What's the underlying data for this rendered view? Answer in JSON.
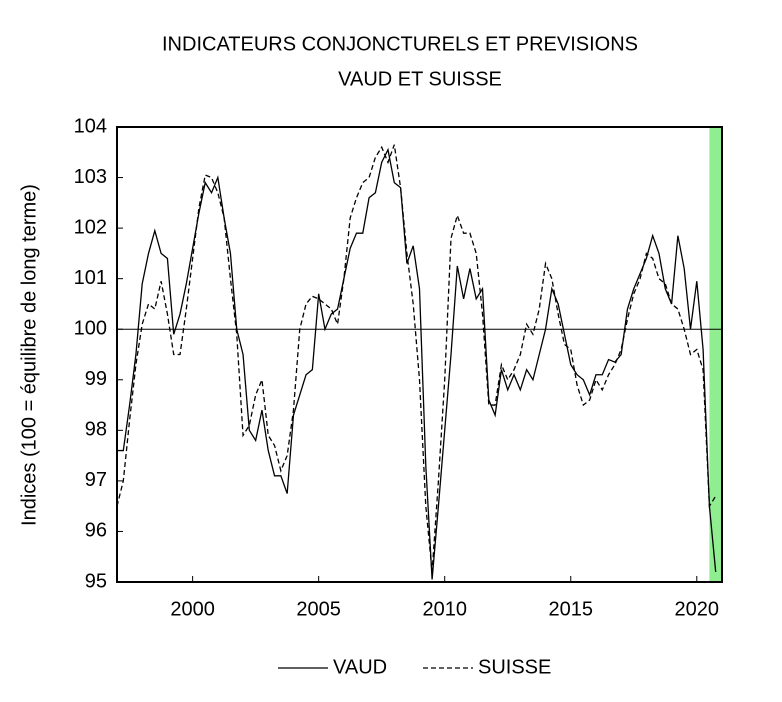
{
  "chart_data": {
    "type": "line",
    "title": "INDICATEURS CONJONCTURELS ET PREVISIONS",
    "subtitle": "VAUD ET SUISSE",
    "y_label": "Indices (100 = équilibre de long terme)",
    "x": [
      1997,
      1997.25,
      1997.5,
      1997.75,
      1998,
      1998.25,
      1998.5,
      1998.75,
      1999,
      1999.25,
      1999.5,
      1999.75,
      2000,
      2000.25,
      2000.5,
      2000.75,
      2001,
      2001.25,
      2001.5,
      2001.75,
      2002,
      2002.25,
      2002.5,
      2002.75,
      2003,
      2003.25,
      2003.5,
      2003.75,
      2004,
      2004.25,
      2004.5,
      2004.75,
      2005,
      2005.25,
      2005.5,
      2005.75,
      2006,
      2006.25,
      2006.5,
      2006.75,
      2007,
      2007.25,
      2007.5,
      2007.75,
      2008,
      2008.25,
      2008.5,
      2008.75,
      2009,
      2009.25,
      2009.5,
      2009.75,
      2010,
      2010.25,
      2010.5,
      2010.75,
      2011,
      2011.25,
      2011.5,
      2011.75,
      2012,
      2012.25,
      2012.5,
      2012.75,
      2013,
      2013.25,
      2013.5,
      2013.75,
      2014,
      2014.25,
      2014.5,
      2014.75,
      2015,
      2015.25,
      2015.5,
      2015.75,
      2016,
      2016.25,
      2016.5,
      2016.75,
      2017,
      2017.25,
      2017.5,
      2017.75,
      2018,
      2018.25,
      2018.5,
      2018.75,
      2019,
      2019.25,
      2019.5,
      2019.75,
      2020,
      2020.25,
      2020.5,
      2020.75
    ],
    "series": [
      {
        "name": "VAUD",
        "color": "#000000",
        "dash": "solid",
        "values": [
          97.6,
          97.6,
          98.5,
          99.5,
          100.9,
          101.5,
          101.95,
          101.5,
          101.4,
          99.9,
          100.3,
          100.9,
          101.6,
          102.3,
          102.9,
          102.7,
          103.0,
          102.2,
          101.5,
          100.0,
          99.5,
          98.0,
          97.8,
          98.4,
          97.6,
          97.1,
          97.1,
          96.75,
          98.3,
          98.7,
          99.1,
          99.2,
          100.7,
          100.0,
          100.3,
          100.4,
          101.0,
          101.6,
          101.9,
          101.9,
          102.6,
          102.7,
          103.3,
          103.55,
          102.9,
          102.8,
          101.3,
          101.65,
          100.8,
          97.3,
          95.05,
          96.5,
          98.0,
          99.5,
          101.25,
          100.6,
          101.2,
          100.6,
          100.8,
          98.6,
          98.3,
          99.2,
          98.8,
          99.1,
          98.8,
          99.2,
          99.0,
          99.5,
          100.0,
          100.8,
          100.5,
          99.9,
          99.3,
          99.1,
          99.0,
          98.7,
          99.1,
          99.1,
          99.4,
          99.35,
          99.5,
          100.4,
          100.8,
          101.1,
          101.4,
          101.85,
          101.5,
          100.8,
          100.5,
          101.85,
          101.2,
          100.0,
          100.95,
          99.6,
          96.5,
          95.2
        ]
      },
      {
        "name": "SUISSE",
        "color": "#000000",
        "dash": "dashed",
        "values": [
          96.5,
          97.0,
          98.2,
          99.3,
          100.1,
          100.5,
          100.4,
          100.95,
          100.3,
          99.5,
          99.5,
          100.4,
          101.4,
          102.4,
          103.05,
          103.0,
          102.7,
          102.2,
          101.0,
          99.9,
          97.9,
          98.1,
          98.7,
          99.0,
          97.9,
          97.7,
          97.2,
          97.5,
          98.4,
          100.0,
          100.5,
          100.65,
          100.6,
          100.5,
          100.4,
          100.1,
          101.0,
          102.2,
          102.6,
          102.9,
          103.0,
          103.4,
          103.6,
          103.3,
          103.65,
          102.8,
          101.5,
          100.5,
          99.0,
          96.5,
          95.2,
          97.0,
          99.0,
          101.8,
          102.25,
          101.9,
          101.9,
          101.5,
          100.3,
          98.5,
          98.5,
          99.3,
          99.0,
          99.2,
          99.5,
          100.1,
          99.9,
          100.4,
          101.3,
          101.0,
          100.3,
          99.7,
          99.6,
          98.9,
          98.5,
          98.6,
          99.0,
          98.8,
          99.1,
          99.3,
          99.6,
          100.2,
          100.7,
          101.0,
          101.5,
          101.4,
          101.0,
          100.9,
          100.5,
          100.4,
          100.0,
          99.5,
          99.6,
          99.2,
          96.5,
          96.7
        ]
      }
    ],
    "xlim": [
      1997,
      2021
    ],
    "xticks": [
      2000,
      2005,
      2010,
      2015,
      2020
    ],
    "ylim": [
      95,
      104
    ],
    "yticks": [
      95,
      96,
      97,
      98,
      99,
      100,
      101,
      102,
      103,
      104
    ],
    "reference_line": 100,
    "shade": [
      2020.5,
      2021
    ],
    "shade_color": "#90ee90",
    "legend": "bottom"
  }
}
